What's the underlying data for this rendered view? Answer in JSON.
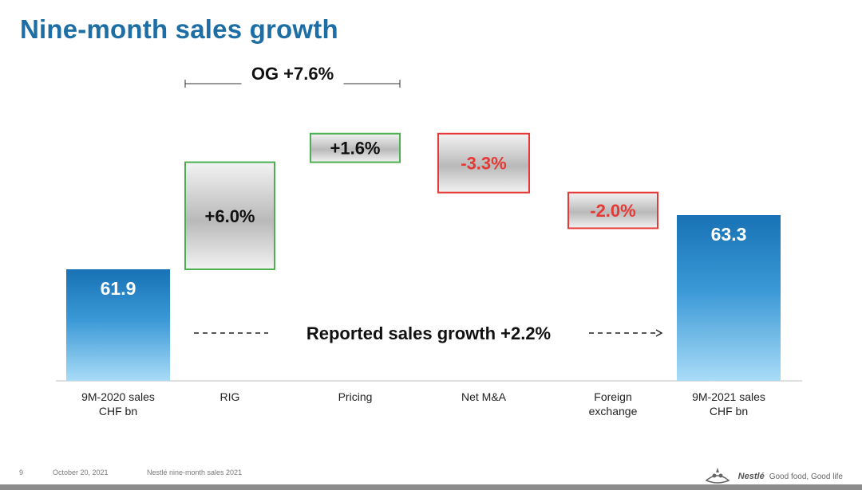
{
  "title": "Nine-month sales growth",
  "chart_data": {
    "type": "waterfall",
    "categories": [
      [
        "9M-2020 sales",
        "CHF bn"
      ],
      [
        "RIG"
      ],
      [
        "Pricing"
      ],
      [
        "Net M&A"
      ],
      [
        "Foreign",
        "exchange"
      ],
      [
        "9M-2021 sales",
        "CHF bn"
      ]
    ],
    "bars": [
      {
        "kind": "total",
        "value": 61.9,
        "label": "61.9"
      },
      {
        "kind": "increase",
        "value": 6.0,
        "label": "+6.0%"
      },
      {
        "kind": "increase",
        "value": 1.6,
        "label": "+1.6%"
      },
      {
        "kind": "decrease",
        "value": -3.3,
        "label": "-3.3%"
      },
      {
        "kind": "decrease",
        "value": -2.0,
        "label": "-2.0%"
      },
      {
        "kind": "total",
        "value": 63.3,
        "label": "63.3"
      }
    ],
    "annotations": {
      "og": "OG +7.6%",
      "reported": "Reported sales growth +2.2%"
    },
    "colors": {
      "total": "#1e7bbd",
      "increase_border": "#4caf50",
      "decrease_border": "#e53935",
      "decrease_text": "#e53935",
      "body_text": "#111111"
    }
  },
  "footer": {
    "page_number": "9",
    "date": "October 20, 2021",
    "doc": "Nestlé nine-month sales 2021",
    "brand": "Nestlé",
    "tagline": "Good food, Good life"
  }
}
